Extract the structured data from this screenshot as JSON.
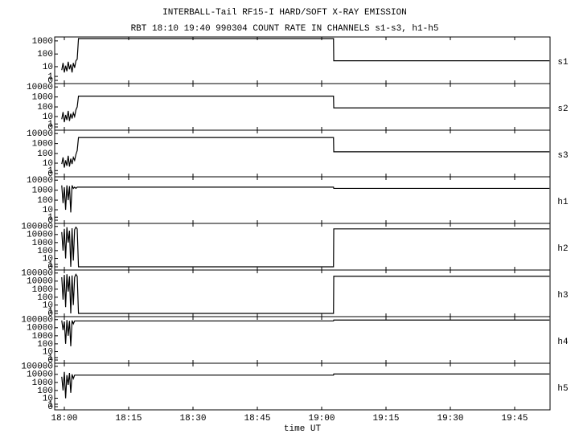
{
  "chart_data": {
    "type": "line",
    "title": "INTERBALL-Tail RF15-I HARD/SOFT X-RAY EMISSION",
    "subtitle": "RBT 18:10 19:40 990304  COUNT RATE IN CHANNELS s1-s3, h1-h5",
    "xlabel": "time UT",
    "yscale": "symlog",
    "grid": false,
    "xlim": [
      17.9625,
      19.8875
    ],
    "xticks": [
      {
        "value": 18,
        "label": "18:00"
      },
      {
        "value": 18.25,
        "label": "18:15"
      },
      {
        "value": 18.5,
        "label": "18:30"
      },
      {
        "value": 18.75,
        "label": "18:45"
      },
      {
        "value": 19,
        "label": "19:00"
      },
      {
        "value": 19.25,
        "label": "19:15"
      },
      {
        "value": 19.5,
        "label": "19:30"
      },
      {
        "value": 19.75,
        "label": "19:45"
      }
    ],
    "x": [
      17.99,
      17.995,
      18.0,
      18.005,
      18.01,
      18.015,
      18.02,
      18.025,
      18.03,
      18.035,
      18.04,
      18.045,
      18.05,
      18.055,
      19.046,
      19.047,
      19.885
    ],
    "series": [
      {
        "name": "s1",
        "color": "#000000",
        "ylim": [
          0,
          1500
        ],
        "yticks": [
          0,
          1,
          10,
          100,
          1000
        ],
        "values": [
          5,
          20,
          3,
          12,
          4,
          25,
          6,
          15,
          3,
          20,
          8,
          30,
          40,
          1500,
          1500,
          30,
          30
        ]
      },
      {
        "name": "s2",
        "color": "#000000",
        "ylim": [
          0,
          15000
        ],
        "yticks": [
          0,
          1,
          10,
          100,
          1000,
          10000
        ],
        "values": [
          5,
          30,
          2,
          15,
          4,
          40,
          3,
          20,
          6,
          25,
          10,
          50,
          100,
          1200,
          1200,
          80,
          80
        ]
      },
      {
        "name": "s3",
        "color": "#000000",
        "ylim": [
          0,
          15000
        ],
        "yticks": [
          0,
          1,
          10,
          100,
          1000,
          10000
        ],
        "values": [
          8,
          40,
          3,
          20,
          5,
          60,
          4,
          30,
          8,
          40,
          20,
          80,
          200,
          4000,
          4000,
          150,
          150
        ]
      },
      {
        "name": "h1",
        "color": "#000000",
        "ylim": [
          0,
          15000
        ],
        "yticks": [
          0,
          1,
          10,
          100,
          1000,
          10000
        ],
        "values": [
          3000,
          50,
          2000,
          10,
          3000,
          100,
          2500,
          5,
          3000,
          1500,
          2000,
          1500,
          2000,
          2000,
          2000,
          1500,
          1500
        ]
      },
      {
        "name": "h2",
        "color": "#000000",
        "ylim": [
          0,
          150000
        ],
        "yticks": [
          0,
          1,
          10,
          100,
          1000,
          10000,
          100000
        ],
        "values": [
          20000,
          100,
          50000,
          10,
          80000,
          1000,
          30000,
          0,
          60000,
          5,
          40000,
          80000,
          50000,
          0,
          0,
          50000,
          50000
        ]
      },
      {
        "name": "h3",
        "color": "#000000",
        "ylim": [
          0,
          150000
        ],
        "yticks": [
          0,
          1,
          10,
          100,
          1000,
          10000,
          100000
        ],
        "values": [
          30000,
          50,
          60000,
          5,
          70000,
          500,
          40000,
          0,
          50000,
          10,
          30000,
          70000,
          40000,
          0,
          0,
          40000,
          40000
        ]
      },
      {
        "name": "h4",
        "color": "#000000",
        "ylim": [
          0,
          150000
        ],
        "yticks": [
          0,
          1,
          10,
          100,
          1000,
          10000,
          100000
        ],
        "values": [
          80000,
          5000,
          60000,
          100,
          90000,
          1000,
          70000,
          50,
          80000,
          30000,
          70000,
          70000,
          70000,
          70000,
          70000,
          90000,
          90000
        ]
      },
      {
        "name": "h5",
        "color": "#000000",
        "ylim": [
          0,
          150000
        ],
        "yticks": [
          0,
          1,
          10,
          100,
          1000,
          10000,
          100000
        ],
        "values": [
          5000,
          100,
          20000,
          10,
          8000,
          500,
          15000,
          50,
          10000,
          3000,
          8000,
          8000,
          8000,
          8000,
          8000,
          11000,
          11000
        ]
      }
    ]
  }
}
